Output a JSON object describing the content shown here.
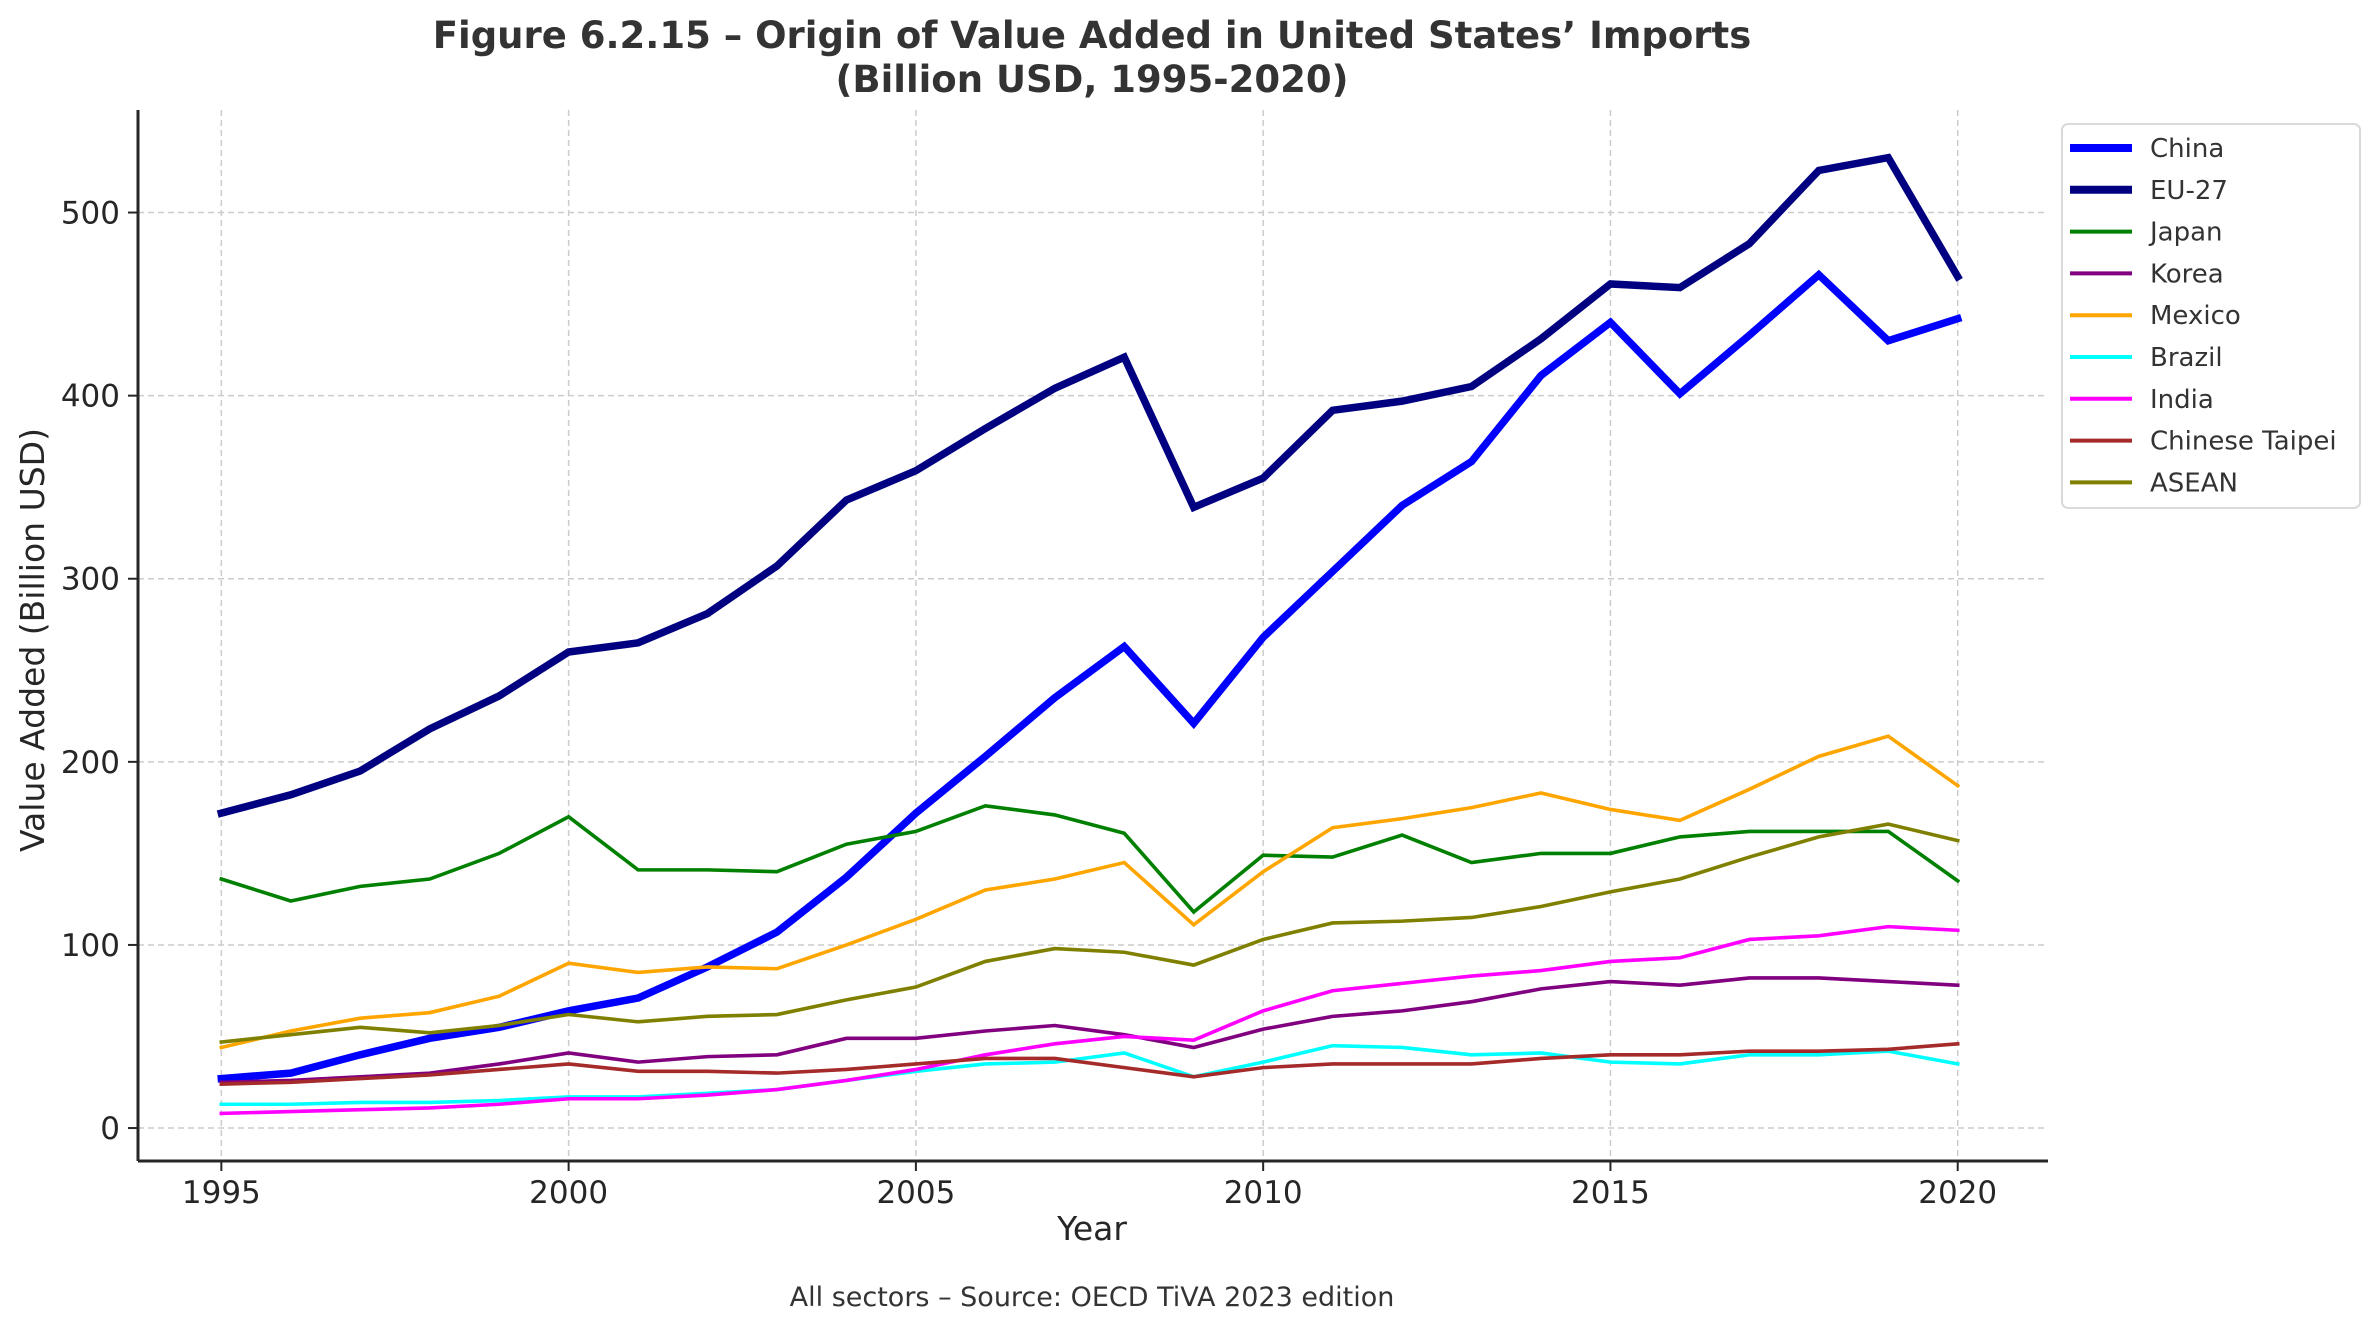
{
  "chart_data": {
    "type": "line",
    "title": "Figure 6.2.15 – Origin of Value Added in United States’ Imports",
    "subtitle": "(Billion USD, 1995-2020)",
    "xlabel": "Year",
    "ylabel": "Value Added (Billion USD)",
    "caption": "All sectors – Source: OECD TiVA 2023 edition",
    "xlim": [
      1993.8,
      2021.3
    ],
    "ylim": [
      -18,
      556
    ],
    "xticks": [
      1995,
      2000,
      2005,
      2010,
      2015,
      2020
    ],
    "yticks": [
      0,
      100,
      200,
      300,
      400,
      500
    ],
    "grid": true,
    "legend_position": "outside-top-right",
    "x": [
      1995,
      1996,
      1997,
      1998,
      1999,
      2000,
      2001,
      2002,
      2003,
      2004,
      2005,
      2006,
      2007,
      2008,
      2009,
      2010,
      2011,
      2012,
      2013,
      2014,
      2015,
      2016,
      2017,
      2018,
      2019,
      2020
    ],
    "series": [
      {
        "name": "China",
        "color": "#0000ff",
        "thick": true,
        "values": [
          27,
          30,
          40,
          49,
          55,
          64,
          71,
          88,
          107,
          137,
          172,
          203,
          235,
          263,
          221,
          268,
          304,
          340,
          364,
          411,
          440,
          401,
          433,
          466,
          430,
          442
        ]
      },
      {
        "name": "EU-27",
        "color": "#000080",
        "thick": true,
        "values": [
          172,
          182,
          195,
          218,
          236,
          260,
          265,
          281,
          307,
          343,
          359,
          382,
          404,
          421,
          339,
          355,
          392,
          397,
          405,
          431,
          461,
          459,
          483,
          523,
          530,
          465
        ]
      },
      {
        "name": "Japan",
        "color": "#008000",
        "thick": false,
        "values": [
          136,
          124,
          132,
          136,
          150,
          170,
          141,
          141,
          140,
          155,
          162,
          176,
          171,
          161,
          118,
          149,
          148,
          160,
          145,
          150,
          150,
          159,
          162,
          162,
          162,
          135
        ]
      },
      {
        "name": "Korea",
        "color": "#800080",
        "thick": false,
        "values": [
          25,
          26,
          28,
          30,
          35,
          41,
          36,
          39,
          40,
          49,
          49,
          53,
          56,
          51,
          44,
          54,
          61,
          64,
          69,
          76,
          80,
          78,
          82,
          82,
          80,
          78
        ]
      },
      {
        "name": "Mexico",
        "color": "#ffa500",
        "thick": false,
        "values": [
          44,
          53,
          60,
          63,
          72,
          90,
          85,
          88,
          87,
          100,
          114,
          130,
          136,
          145,
          111,
          140,
          164,
          169,
          175,
          183,
          174,
          168,
          185,
          203,
          214,
          187
        ]
      },
      {
        "name": "Brazil",
        "color": "#00ffff",
        "thick": false,
        "values": [
          13,
          13,
          14,
          14,
          15,
          17,
          17,
          19,
          21,
          26,
          31,
          35,
          36,
          41,
          28,
          36,
          45,
          44,
          40,
          41,
          36,
          35,
          40,
          40,
          42,
          35
        ]
      },
      {
        "name": "India",
        "color": "#ff00ff",
        "thick": false,
        "values": [
          8,
          9,
          10,
          11,
          13,
          16,
          16,
          18,
          21,
          26,
          32,
          40,
          46,
          50,
          48,
          64,
          75,
          79,
          83,
          86,
          91,
          93,
          103,
          105,
          110,
          108
        ]
      },
      {
        "name": "Chinese Taipei",
        "color": "#a52a2a",
        "thick": false,
        "values": [
          24,
          25,
          27,
          29,
          32,
          35,
          31,
          31,
          30,
          32,
          35,
          38,
          38,
          33,
          28,
          33,
          35,
          35,
          35,
          38,
          40,
          40,
          42,
          42,
          43,
          46
        ]
      },
      {
        "name": "ASEAN",
        "color": "#808000",
        "thick": false,
        "values": [
          47,
          51,
          55,
          52,
          56,
          62,
          58,
          61,
          62,
          70,
          77,
          91,
          98,
          96,
          89,
          103,
          112,
          113,
          115,
          121,
          129,
          136,
          148,
          159,
          166,
          157
        ]
      }
    ]
  }
}
